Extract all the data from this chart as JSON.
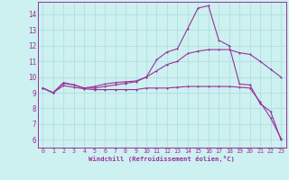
{
  "title": "",
  "xlabel": "Windchill (Refroidissement éolien,°C)",
  "bg_color": "#cdf0f0",
  "line_color": "#993399",
  "grid_color": "#aadddd",
  "spine_color": "#993399",
  "xlim": [
    -0.5,
    23.5
  ],
  "ylim": [
    5.5,
    14.8
  ],
  "xticks": [
    0,
    1,
    2,
    3,
    4,
    5,
    6,
    7,
    8,
    9,
    10,
    11,
    12,
    13,
    14,
    15,
    16,
    17,
    18,
    19,
    20,
    21,
    22,
    23
  ],
  "yticks": [
    6,
    7,
    8,
    9,
    10,
    11,
    12,
    13,
    14
  ],
  "line1_x": [
    0,
    1,
    2,
    3,
    4,
    5,
    6,
    7,
    8,
    9,
    10,
    11,
    12,
    13,
    14,
    15,
    16,
    17,
    18,
    19,
    20,
    21,
    22,
    23
  ],
  "line1_y": [
    9.3,
    9.0,
    9.6,
    9.5,
    9.3,
    9.3,
    9.4,
    9.5,
    9.6,
    9.7,
    10.0,
    11.1,
    11.6,
    11.8,
    13.1,
    14.4,
    14.55,
    12.35,
    12.0,
    9.55,
    9.5,
    8.3,
    7.8,
    6.0
  ],
  "line2_x": [
    0,
    1,
    2,
    3,
    4,
    5,
    6,
    7,
    8,
    9,
    10,
    11,
    12,
    13,
    14,
    15,
    16,
    17,
    18,
    19,
    20,
    21,
    22,
    23
  ],
  "line2_y": [
    9.3,
    9.0,
    9.65,
    9.5,
    9.3,
    9.4,
    9.55,
    9.65,
    9.7,
    9.75,
    10.0,
    10.4,
    10.8,
    11.0,
    11.5,
    11.65,
    11.75,
    11.75,
    11.75,
    11.55,
    11.45,
    11.0,
    10.5,
    10.0
  ],
  "line3_x": [
    0,
    1,
    2,
    3,
    4,
    5,
    6,
    7,
    8,
    9,
    10,
    11,
    12,
    13,
    14,
    15,
    16,
    17,
    18,
    19,
    20,
    21,
    22,
    23
  ],
  "line3_y": [
    9.3,
    9.0,
    9.45,
    9.35,
    9.25,
    9.2,
    9.2,
    9.2,
    9.2,
    9.2,
    9.3,
    9.3,
    9.3,
    9.35,
    9.4,
    9.4,
    9.4,
    9.4,
    9.4,
    9.35,
    9.3,
    8.4,
    7.4,
    6.1
  ],
  "xlabel_fontsize": 5.2,
  "tick_fontsize": 4.8,
  "ytick_fontsize": 5.5,
  "linewidth": 0.8,
  "marker_size": 2.0
}
